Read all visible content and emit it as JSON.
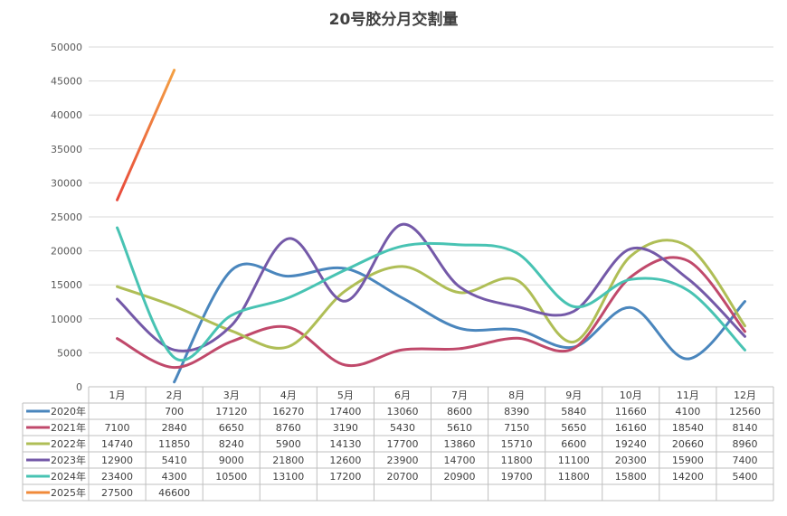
{
  "chart_data": {
    "type": "line",
    "title": "20号胶分月交割量",
    "categories": [
      "1月",
      "2月",
      "3月",
      "4月",
      "5月",
      "6月",
      "7月",
      "8月",
      "9月",
      "10月",
      "11月",
      "12月"
    ],
    "ylim": [
      0,
      50000
    ],
    "yticks": [
      0,
      5000,
      10000,
      15000,
      20000,
      25000,
      30000,
      35000,
      40000,
      45000,
      50000
    ],
    "grid": true,
    "legend": "data-table-left",
    "series": [
      {
        "name": "2020年",
        "color": "#4a86bd",
        "values": [
          null,
          700,
          17120,
          16270,
          17400,
          13060,
          8600,
          8390,
          5840,
          11660,
          4100,
          12560
        ]
      },
      {
        "name": "2021年",
        "color": "#c0496b",
        "values": [
          7100,
          2840,
          6650,
          8760,
          3190,
          5430,
          5610,
          7150,
          5650,
          16160,
          18540,
          8140
        ]
      },
      {
        "name": "2022年",
        "color": "#afbe56",
        "values": [
          14740,
          11850,
          8240,
          5900,
          14130,
          17700,
          13860,
          15710,
          6600,
          19240,
          20660,
          8960
        ]
      },
      {
        "name": "2023年",
        "color": "#7459a8",
        "values": [
          12900,
          5410,
          9000,
          21800,
          12600,
          23900,
          14700,
          11800,
          11100,
          20300,
          15900,
          7400
        ]
      },
      {
        "name": "2024年",
        "color": "#48c3b3",
        "values": [
          23400,
          4300,
          10500,
          13100,
          17200,
          20700,
          20900,
          19700,
          11800,
          15800,
          14200,
          5400
        ]
      },
      {
        "name": "2025年",
        "color": "#f08a3a",
        "values": [
          27500,
          46600,
          null,
          null,
          null,
          null,
          null,
          null,
          null,
          null,
          null,
          null
        ]
      }
    ]
  }
}
